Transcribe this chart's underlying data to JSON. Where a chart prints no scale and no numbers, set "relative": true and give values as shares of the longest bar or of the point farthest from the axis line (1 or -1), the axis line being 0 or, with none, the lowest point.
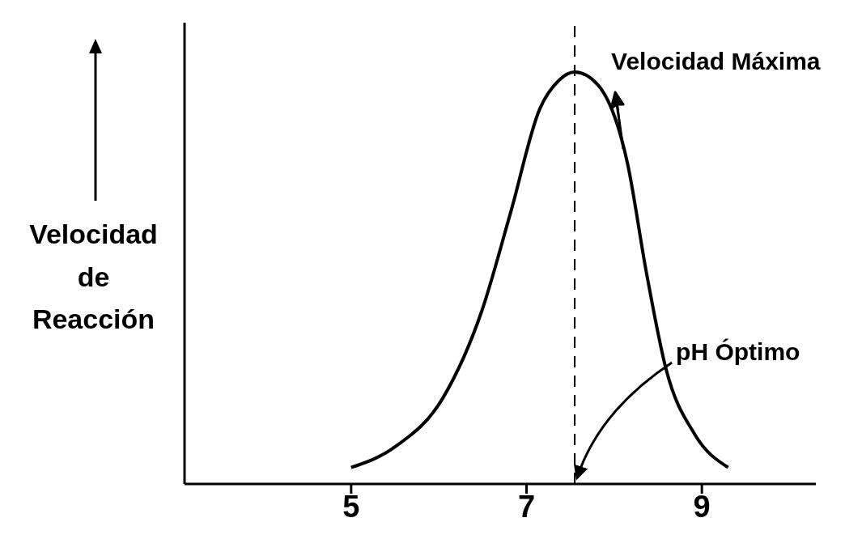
{
  "chart_data": {
    "type": "line",
    "ylabel": "Velocidad de Reacción",
    "relative": true,
    "x": [
      5,
      5.5,
      6.05,
      6.49,
      6.82,
      7.15,
      7.37,
      7.55,
      7.81,
      8.15,
      8.37,
      8.59,
      8.92,
      9.3
    ],
    "series": [
      {
        "color": "#000000",
        "values": [
          0.04,
          0.09,
          0.21,
          0.42,
          0.66,
          0.91,
          0.98,
          1,
          0.97,
          0.78,
          0.51,
          0.28,
          0.12,
          0.04
        ]
      }
    ],
    "xlim": [
      3.1,
      10.3
    ],
    "xticks": [
      5,
      7,
      9
    ],
    "ref_lines": [
      {
        "axis": "x",
        "value": 7.55,
        "color": "#000000",
        "line_style": "dashed"
      }
    ],
    "annotations": [
      {
        "text": "Velocidad Máxima",
        "x": 7.55,
        "y": 1
      },
      "pH Óptimo"
    ],
    "grid": false,
    "legend": false,
    "marker": "none",
    "line_style": "solid"
  }
}
